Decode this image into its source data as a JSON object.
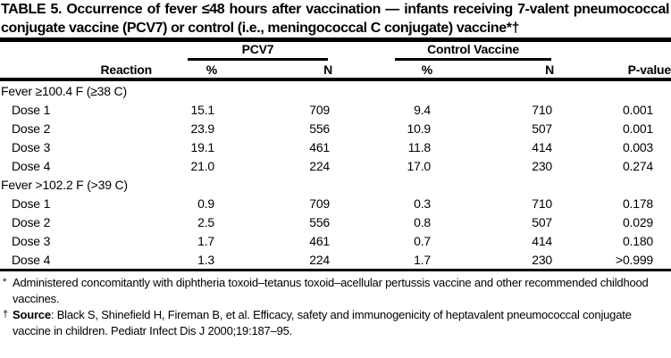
{
  "title": "TABLE 5. Occurrence of fever ≤48 hours after vaccination — infants receiving 7-valent pneumococcal conjugate vaccine (PCV7) or control (i.e., meningococcal C conjugate) vaccine*†",
  "table": {
    "groups": {
      "pcv7": "PCV7",
      "control": "Control Vaccine"
    },
    "columns": {
      "reaction": "Reaction",
      "pcv7_pct": "%",
      "pcv7_n": "N",
      "control_pct": "%",
      "control_n": "N",
      "p_value": "P-value"
    },
    "sections": [
      {
        "label": "Fever ≥100.4 F (≥38 C)",
        "rows": [
          {
            "reaction": "Dose 1",
            "pcv7_pct": "15.1",
            "pcv7_n": "709",
            "control_pct": "9.4",
            "control_n": "710",
            "p_value": "0.001"
          },
          {
            "reaction": "Dose 2",
            "pcv7_pct": "23.9",
            "pcv7_n": "556",
            "control_pct": "10.9",
            "control_n": "507",
            "p_value": "0.001"
          },
          {
            "reaction": "Dose 3",
            "pcv7_pct": "19.1",
            "pcv7_n": "461",
            "control_pct": "11.8",
            "control_n": "414",
            "p_value": "0.003"
          },
          {
            "reaction": "Dose 4",
            "pcv7_pct": "21.0",
            "pcv7_n": "224",
            "control_pct": "17.0",
            "control_n": "230",
            "p_value": "0.274"
          }
        ]
      },
      {
        "label": "Fever >102.2 F (>39 C)",
        "rows": [
          {
            "reaction": "Dose 1",
            "pcv7_pct": "0.9",
            "pcv7_n": "709",
            "control_pct": "0.3",
            "control_n": "710",
            "p_value": "0.178"
          },
          {
            "reaction": "Dose 2",
            "pcv7_pct": "2.5",
            "pcv7_n": "556",
            "control_pct": "0.8",
            "control_n": "507",
            "p_value": "0.029"
          },
          {
            "reaction": "Dose 3",
            "pcv7_pct": "1.7",
            "pcv7_n": "461",
            "control_pct": "0.7",
            "control_n": "414",
            "p_value": "0.180"
          },
          {
            "reaction": "Dose 4",
            "pcv7_pct": "1.3",
            "pcv7_n": "224",
            "control_pct": "1.7",
            "control_n": "230",
            "p_value": ">0.999"
          }
        ]
      }
    ]
  },
  "footnotes": [
    {
      "marker": "*",
      "lead": "",
      "text": "Administered concomitantly with diphtheria toxoid–tetanus toxoid–acellular pertussis vaccine and other recommended childhood vaccines."
    },
    {
      "marker": "†",
      "lead": "Source",
      "text": ": Black S, Shinefield H, Fireman B, et al. Efficacy, safety and immunogenicity of heptavalent pneumococcal conjugate vaccine in children. Pediatr Infect Dis J 2000;19:187–95."
    }
  ],
  "colors": {
    "text": "#000000",
    "background": "#ffffff",
    "rule": "#000000"
  }
}
